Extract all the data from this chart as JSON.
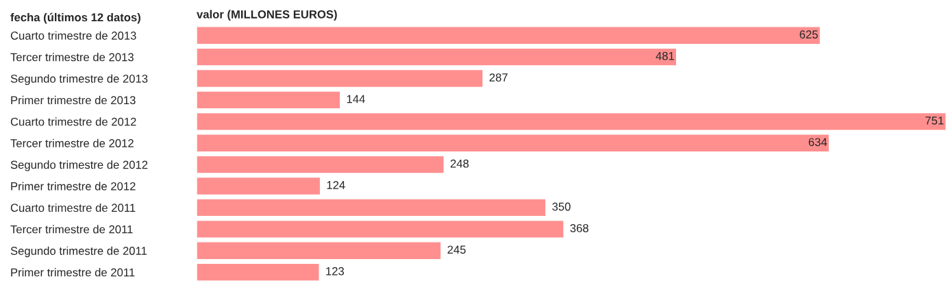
{
  "chart_data": {
    "type": "bar",
    "orientation": "horizontal",
    "ylabel": "fecha (últimos 12 datos)",
    "xlabel": "valor (MILLONES EUROS)",
    "categories": [
      "Cuarto trimestre de 2013",
      "Tercer trimestre de 2013",
      "Segundo trimestre de 2013",
      "Primer trimestre de 2013",
      "Cuarto trimestre de 2012",
      "Tercer trimestre de 2012",
      "Segundo trimestre de 2012",
      "Primer trimestre de 2012",
      "Cuarto trimestre de 2011",
      "Tercer trimestre de 2011",
      "Segundo trimestre de 2011",
      "Primer trimestre de 2011"
    ],
    "values": [
      625,
      481,
      287,
      144,
      751,
      634,
      248,
      124,
      350,
      368,
      245,
      123
    ],
    "color": "#ff8f8f",
    "data_labels": true,
    "grid": false,
    "legend": false,
    "tick_labels": "y"
  }
}
